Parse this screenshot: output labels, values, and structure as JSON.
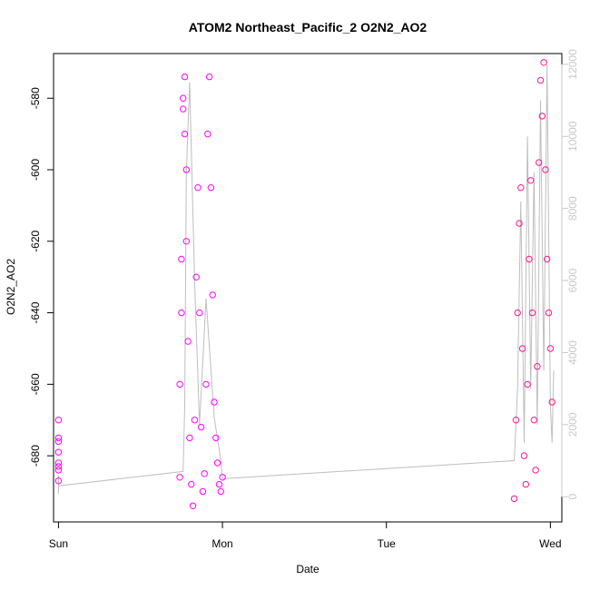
{
  "chart_data": {
    "type": "scatter",
    "title": "ATOM2 Northeast_Pacific_2 O2N2_AO2",
    "xlabel": "Date",
    "ylabel": "O2N2_AO2",
    "x_ticks": [
      "Sun",
      "Mon",
      "Tue",
      "Wed"
    ],
    "x_range_days": [
      -0.03,
      3.07
    ],
    "ylim": [
      -698.5,
      -567.5
    ],
    "y_ticks": [
      -580,
      -600,
      -620,
      -640,
      -660,
      -680
    ],
    "y2lim": [
      -700,
      12300
    ],
    "y2_ticks": [
      0,
      2000,
      4000,
      6000,
      8000,
      10000,
      12000
    ],
    "grid": false,
    "colors": {
      "o2n2_points": "#ff00ff",
      "o2n2_points_late": "#ff1493",
      "altitude_line": "#bebebe",
      "right_axis": "#c8c8c8"
    },
    "series": [
      {
        "kind": "points",
        "axis": "left",
        "style": "open circles",
        "x": [
          0.0,
          0.0,
          0.0,
          0.0,
          0.0,
          0.0,
          0.0,
          0.0,
          0.74,
          0.74,
          0.75,
          0.75,
          0.76,
          0.76,
          0.77,
          0.77,
          0.78,
          0.78,
          0.79,
          0.8,
          0.81,
          0.82,
          0.83,
          0.84,
          0.85,
          0.86,
          0.87,
          0.88,
          0.89,
          0.9,
          0.91,
          0.92,
          0.93,
          0.94,
          0.95,
          0.96,
          0.97,
          0.98,
          0.99,
          1.0,
          2.78,
          2.79,
          2.8,
          2.81,
          2.82,
          2.83,
          2.84,
          2.85,
          2.86,
          2.87,
          2.88,
          2.89,
          2.9,
          2.91,
          2.92,
          2.93,
          2.94,
          2.95,
          2.96,
          2.97,
          2.98,
          2.99,
          3.0,
          3.01
        ],
        "y": [
          -670,
          -675,
          -676,
          -679,
          -682,
          -683,
          -684,
          -687,
          -686,
          -660,
          -640,
          -625,
          -583,
          -580,
          -574,
          -590,
          -600,
          -620,
          -648,
          -675,
          -688,
          -694,
          -670,
          -630,
          -605,
          -640,
          -672,
          -690,
          -685,
          -660,
          -590,
          -574,
          -605,
          -635,
          -665,
          -675,
          -682,
          -688,
          -690,
          -686,
          -692,
          -670,
          -640,
          -615,
          -605,
          -650,
          -680,
          -688,
          -660,
          -625,
          -603,
          -640,
          -670,
          -684,
          -655,
          -598,
          -575,
          -585,
          -570,
          -600,
          -625,
          -640,
          -650,
          -665
        ]
      },
      {
        "kind": "line",
        "axis": "right",
        "name": "",
        "x": [
          0.0,
          0.0,
          0.0,
          0.76,
          0.77,
          0.78,
          0.8,
          0.83,
          0.86,
          0.9,
          0.95,
          0.99,
          1.0,
          2.78,
          2.8,
          2.82,
          2.84,
          2.86,
          2.88,
          2.9,
          2.92,
          2.94,
          2.96,
          2.98,
          3.0,
          3.01,
          3.02
        ],
        "y": [
          80,
          600,
          300,
          700,
          2500,
          9000,
          11500,
          6000,
          2000,
          5500,
          2200,
          1000,
          500,
          1000,
          3000,
          8200,
          1500,
          10000,
          3000,
          9000,
          2000,
          11000,
          3500,
          12000,
          2500,
          1500,
          3500
        ]
      }
    ]
  }
}
